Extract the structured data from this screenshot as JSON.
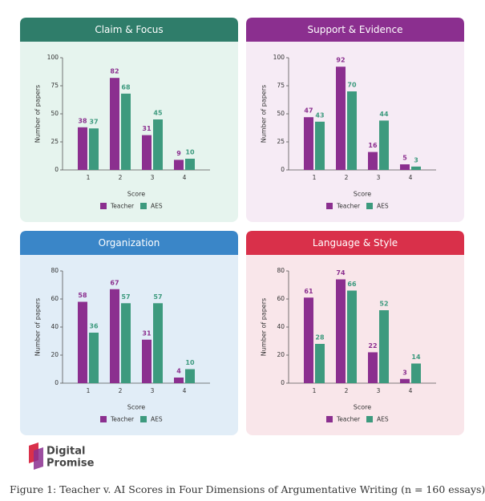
{
  "chart_data": [
    {
      "type": "bar",
      "title": "Claim & Focus",
      "xlabel": "Score",
      "ylabel": "Number of papers",
      "categories": [
        "1",
        "2",
        "3",
        "4"
      ],
      "ylim": [
        0,
        100
      ],
      "yticks": [
        0,
        25,
        50,
        75,
        100
      ],
      "series": [
        {
          "name": "Teacher",
          "color": "#8b2f8f",
          "values": [
            38,
            82,
            31,
            9
          ]
        },
        {
          "name": "AES",
          "color": "#3d9a7e",
          "values": [
            37,
            68,
            45,
            10
          ]
        }
      ]
    },
    {
      "type": "bar",
      "title": "Support & Evidence",
      "xlabel": "Score",
      "ylabel": "Number of papers",
      "categories": [
        "1",
        "2",
        "3",
        "4"
      ],
      "ylim": [
        0,
        100
      ],
      "yticks": [
        0,
        25,
        50,
        75,
        100
      ],
      "series": [
        {
          "name": "Teacher",
          "color": "#8b2f8f",
          "values": [
            47,
            92,
            16,
            5
          ]
        },
        {
          "name": "AES",
          "color": "#3d9a7e",
          "values": [
            43,
            70,
            44,
            3
          ]
        }
      ]
    },
    {
      "type": "bar",
      "title": "Organization",
      "xlabel": "Score",
      "ylabel": "Number of papers",
      "categories": [
        "1",
        "2",
        "3",
        "4"
      ],
      "ylim": [
        0,
        80
      ],
      "yticks": [
        0,
        20,
        40,
        60,
        80
      ],
      "series": [
        {
          "name": "Teacher",
          "color": "#8b2f8f",
          "values": [
            58,
            67,
            31,
            4
          ]
        },
        {
          "name": "AES",
          "color": "#3d9a7e",
          "values": [
            36,
            57,
            57,
            10
          ]
        }
      ]
    },
    {
      "type": "bar",
      "title": "Language & Style",
      "xlabel": "Score",
      "ylabel": "Number of papers",
      "categories": [
        "1",
        "2",
        "3",
        "4"
      ],
      "ylim": [
        0,
        80
      ],
      "yticks": [
        0,
        20,
        40,
        60,
        80
      ],
      "series": [
        {
          "name": "Teacher",
          "color": "#8b2f8f",
          "values": [
            61,
            74,
            22,
            3
          ]
        },
        {
          "name": "AES",
          "color": "#3d9a7e",
          "values": [
            28,
            66,
            52,
            14
          ]
        }
      ]
    }
  ],
  "logo": {
    "line1": "Digital",
    "line2": "Promise"
  },
  "caption": "Figure 1: Teacher v. AI Scores in Four Dimensions of Argumentative Writing (n = 160 essays)"
}
